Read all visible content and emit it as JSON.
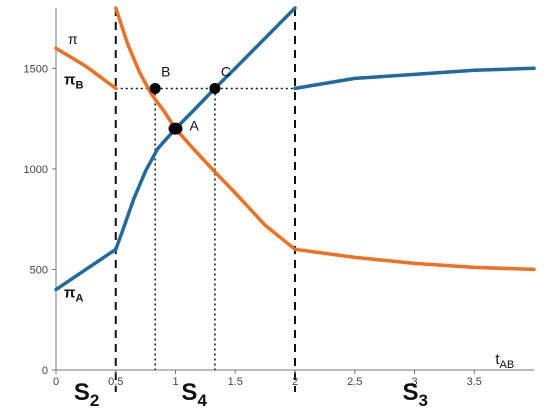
{
  "chart_data": {
    "type": "line",
    "ylabel": "π",
    "xlabel": "t",
    "xlabel_subscript": "AB",
    "xlim": [
      0,
      4
    ],
    "ylim": [
      0,
      1800
    ],
    "x_ticks": [
      0,
      0.5,
      1,
      1.5,
      2,
      2.5,
      3,
      3.5
    ],
    "x_tick_labels": [
      "0",
      "0.5",
      "1",
      "1.5",
      "2",
      "2.5",
      "3",
      "3.5"
    ],
    "y_ticks": [
      0,
      500,
      1000,
      1500
    ],
    "y_tick_labels": [
      "0",
      "500",
      "1000",
      "1500"
    ],
    "series": [
      {
        "name_main": "π",
        "name_sub": "A",
        "color": "#1f6aa0",
        "segments": [
          [
            [
              0,
              400
            ],
            [
              0.5,
              600
            ]
          ],
          [
            [
              0.5,
              600
            ],
            [
              0.55,
              680
            ],
            [
              0.65,
              850
            ],
            [
              0.75,
              990
            ],
            [
              0.85,
              1100
            ],
            [
              1.0,
              1200
            ],
            [
              1.15,
              1290
            ],
            [
              1.33,
              1400
            ],
            [
              1.5,
              1500
            ],
            [
              1.75,
              1650
            ],
            [
              2.0,
              1800
            ]
          ],
          [
            [
              2.0,
              1400
            ],
            [
              2.5,
              1450
            ],
            [
              3.0,
              1470
            ],
            [
              3.5,
              1490
            ],
            [
              4.0,
              1500
            ]
          ]
        ]
      },
      {
        "name_main": "π",
        "name_sub": "B",
        "color": "#f07020",
        "segments": [
          [
            [
              0,
              1600
            ],
            [
              0.25,
              1510
            ],
            [
              0.5,
              1400
            ]
          ],
          [
            [
              0.5,
              1800
            ],
            [
              0.6,
              1620
            ],
            [
              0.7,
              1480
            ],
            [
              0.8,
              1370
            ],
            [
              0.9,
              1290
            ],
            [
              1.0,
              1200
            ],
            [
              1.15,
              1100
            ],
            [
              1.33,
              985
            ],
            [
              1.5,
              880
            ],
            [
              1.75,
              720
            ],
            [
              2.0,
              600
            ]
          ],
          [
            [
              2.0,
              600
            ],
            [
              2.5,
              560
            ],
            [
              3.0,
              530
            ],
            [
              3.5,
              510
            ],
            [
              4.0,
              500
            ]
          ]
        ]
      }
    ],
    "vertical_dashed_lines": [
      0.5,
      2
    ],
    "dotted_lines": [
      {
        "from": [
          0.5,
          1400
        ],
        "to": [
          2,
          1400
        ]
      },
      {
        "from": [
          0.83,
          1400
        ],
        "to": [
          0.83,
          0
        ]
      },
      {
        "from": [
          1.33,
          1400
        ],
        "to": [
          1.33,
          0
        ]
      }
    ],
    "points": [
      {
        "label": "A",
        "x": 1.0,
        "y": 1200
      },
      {
        "label": "B",
        "x": 0.83,
        "y": 1400
      },
      {
        "label": "C",
        "x": 1.33,
        "y": 1400
      }
    ],
    "regions": [
      {
        "main": "S",
        "sub": "2",
        "x": 0.25
      },
      {
        "main": "S",
        "sub": "4",
        "x": 1.15
      },
      {
        "main": "S",
        "sub": "3",
        "x": 3.0
      }
    ]
  }
}
